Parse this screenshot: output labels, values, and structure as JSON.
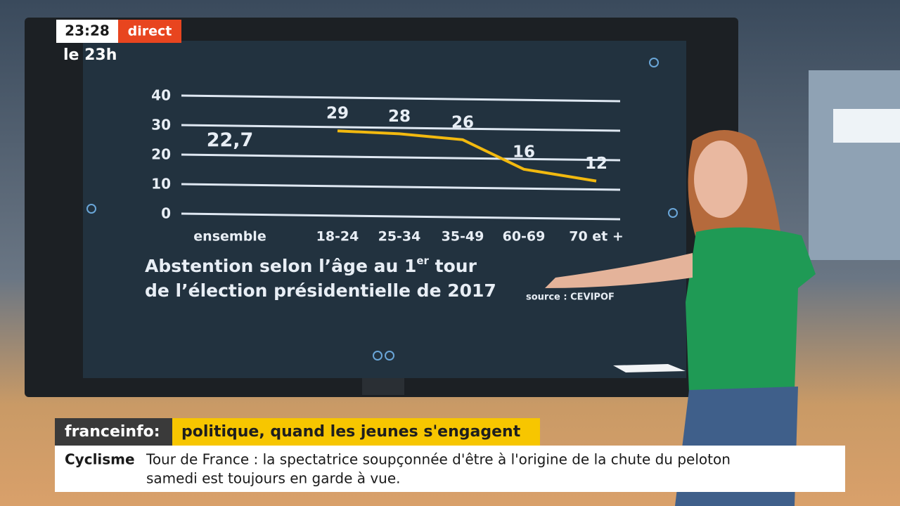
{
  "overlay": {
    "clock": "23:28",
    "live": "direct",
    "program": "le 23h"
  },
  "chart_data": {
    "type": "line",
    "title_parts": [
      "Abstention selon l’âge au 1",
      "er",
      " tour",
      "de l’élection présidentielle de 2017"
    ],
    "source": "source : CEVIPOF",
    "categories": [
      "ensemble",
      "18-24",
      "25-34",
      "35-49",
      "60-69",
      "70 et +"
    ],
    "series": [
      {
        "color": "#f2b90f",
        "values": [
          null,
          29,
          28,
          26,
          16,
          12
        ]
      }
    ],
    "overall_value": 22.7,
    "overall_label": "22,7",
    "ylim": [
      0,
      40
    ],
    "yticks": [
      0,
      10,
      20,
      30,
      40
    ],
    "grid": true
  },
  "banner": {
    "brand": "franceinfo:",
    "headline": "politique, quand les jeunes s'engagent"
  },
  "ticker": {
    "topic": "Cyclisme",
    "lines": [
      "Tour de France : la spectatrice soupçonnée d'être à l'origine de la chute du peloton",
      "samedi est toujours en garde à vue."
    ]
  }
}
